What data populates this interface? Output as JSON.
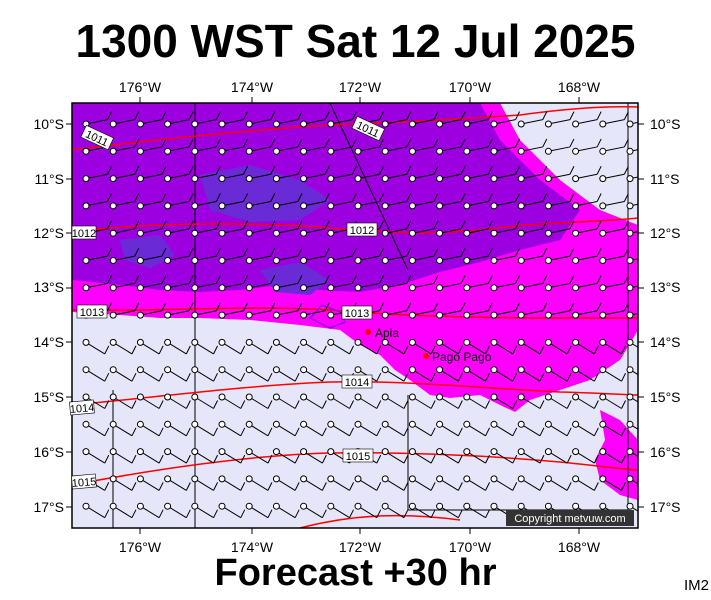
{
  "title": "1300 WST Sat 12 Jul 2025",
  "footer": "Forecast +30 hr",
  "image_id_label": "IM2",
  "copyright": "Copyright metvuw.com",
  "colors": {
    "background_field": "#e6e6fa",
    "magenta": "#ff00ff",
    "purple": "#9d00e0",
    "blue_violet": "#6a2bd6",
    "isobar": "#ff0000",
    "land": "#ff0000"
  },
  "map": {
    "lon_labels": [
      "176°W",
      "174°W",
      "172°W",
      "170°W",
      "168°W"
    ],
    "lat_labels": [
      "10°S",
      "11°S",
      "12°S",
      "13°S",
      "14°S",
      "15°S",
      "16°S",
      "17°S"
    ],
    "isobar_labels": [
      "1011",
      "1011",
      "1012",
      "1012",
      "1013",
      "1013",
      "1014",
      "1014",
      "1015",
      "1015"
    ],
    "places": [
      {
        "name": "Apia"
      },
      {
        "name": "Pago Pago"
      }
    ]
  }
}
